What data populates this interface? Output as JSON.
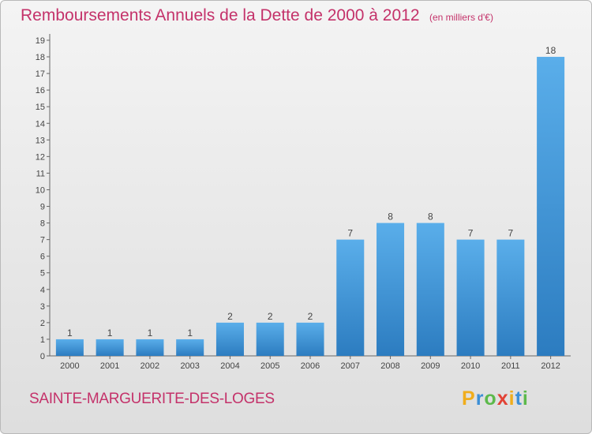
{
  "header": {
    "title": "Remboursements Annuels de la Dette de 2000 à 2012",
    "unit": "(en milliers d'€)"
  },
  "footer": {
    "commune": "SAINTE-MARGUERITE-DES-LOGES",
    "logo_letters": [
      {
        "ch": "P",
        "color": "#f0ad1c"
      },
      {
        "ch": "r",
        "color": "#3c8fd6"
      },
      {
        "ch": "o",
        "color": "#5cb94b"
      },
      {
        "ch": "x",
        "color": "#e24235"
      },
      {
        "ch": "i",
        "color": "#f0ad1c"
      },
      {
        "ch": "t",
        "color": "#3c8fd6"
      },
      {
        "ch": "i",
        "color": "#5cb94b"
      }
    ]
  },
  "colors": {
    "bar_light": "#5aaeea",
    "bar_dark": "#2c7cc0",
    "accent": "#c4326a"
  },
  "chart_data": {
    "type": "bar",
    "title": "Remboursements Annuels de la Dette de 2000 à 2012",
    "subtitle": "(en milliers d'€)",
    "categories": [
      "2000",
      "2001",
      "2002",
      "2003",
      "2004",
      "2005",
      "2006",
      "2007",
      "2008",
      "2009",
      "2010",
      "2011",
      "2012"
    ],
    "values": [
      1,
      1,
      1,
      1,
      2,
      2,
      2,
      7,
      8,
      8,
      7,
      7,
      18
    ],
    "data_labels": [
      "1",
      "1",
      "1",
      "1",
      "2",
      "2",
      "2",
      "7",
      "8",
      "8",
      "7",
      "7",
      "18"
    ],
    "yticks": [
      "0",
      "1",
      "2",
      "3",
      "4",
      "5",
      "6",
      "7",
      "8",
      "9",
      "10",
      "11",
      "12",
      "13",
      "14",
      "15",
      "16",
      "17",
      "18",
      "19"
    ],
    "ylim": [
      0,
      19
    ],
    "grid": false,
    "legend": "none"
  }
}
